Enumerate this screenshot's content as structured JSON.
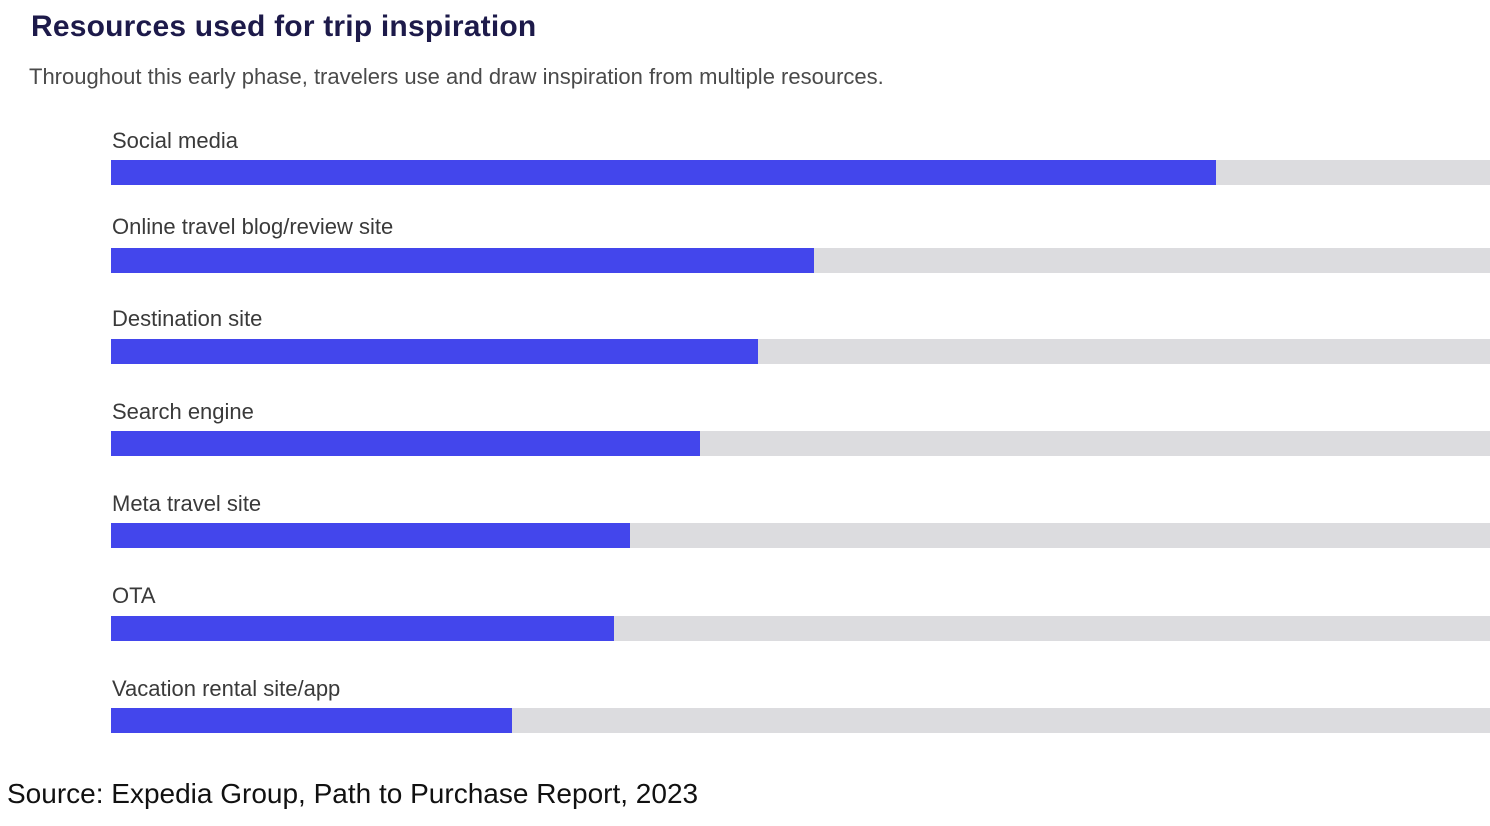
{
  "chart_data": {
    "type": "bar",
    "orientation": "horizontal",
    "title": "Resources used for trip inspiration",
    "subtitle": "Throughout this early phase, travelers use and draw inspiration from multiple resources.",
    "categories": [
      "Social media",
      "Online travel blog/review site",
      "Destination site",
      "Search engine",
      "Meta travel site",
      "OTA",
      "Vacation rental site/app"
    ],
    "values": [
      0.801,
      0.51,
      0.469,
      0.427,
      0.376,
      0.365,
      0.291
    ],
    "value_unit": "fraction of full track",
    "xlim": [
      0,
      1
    ],
    "colors": {
      "bar": "#4346ec",
      "track": "#dcdcdf",
      "title": "#1d1a4a"
    }
  },
  "source": "Source: Expedia Group, Path to Purchase Report, 2023"
}
